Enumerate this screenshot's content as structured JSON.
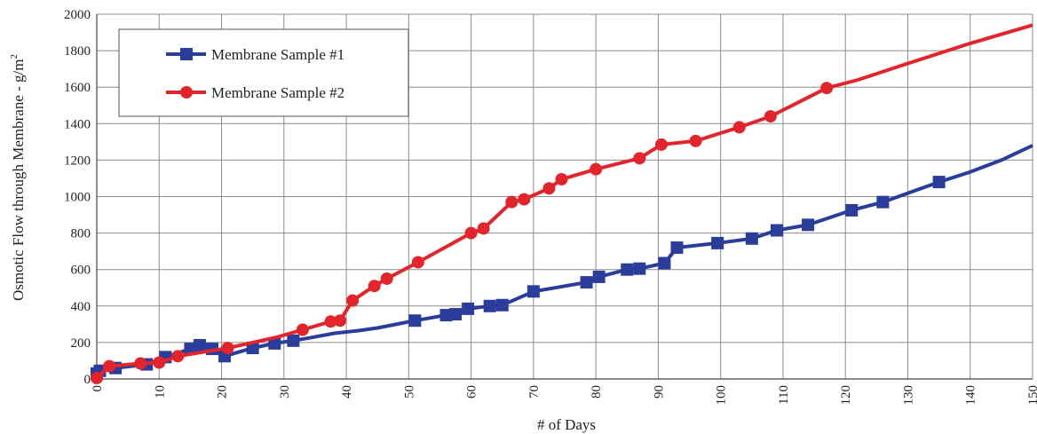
{
  "chart_data": {
    "type": "line",
    "xlabel": "# of Days",
    "ylabel": "Osmotic Flow through Membrane - g/m",
    "ylabel_sup": "2",
    "xlim": [
      0,
      150
    ],
    "ylim": [
      0,
      2000
    ],
    "xticks": [
      "0",
      "10",
      "20",
      "30",
      "40",
      "50",
      "60",
      "70",
      "80",
      "90",
      "100",
      "110",
      "120",
      "130",
      "140",
      "150"
    ],
    "yticks": [
      "0",
      "200",
      "400",
      "600",
      "800",
      "1000",
      "1200",
      "1400",
      "1600",
      "1800",
      "2000"
    ],
    "grid": true,
    "legend_position": "top-left",
    "series": [
      {
        "name": "Membrane Sample #1",
        "color": "#2b3d9a",
        "marker": "square",
        "points": [
          [
            0,
            30
          ],
          [
            0.5,
            45
          ],
          [
            3,
            60
          ],
          [
            8,
            80
          ],
          [
            11,
            120
          ],
          [
            15,
            165
          ],
          [
            16.5,
            185
          ],
          [
            18.5,
            165
          ],
          [
            20.5,
            125
          ],
          [
            25,
            170
          ],
          [
            28.5,
            195
          ],
          [
            31.5,
            210
          ],
          [
            51,
            320
          ],
          [
            56,
            350
          ],
          [
            57.5,
            355
          ],
          [
            59.5,
            385
          ],
          [
            63,
            400
          ],
          [
            65,
            405
          ],
          [
            70,
            480
          ],
          [
            78.5,
            530
          ],
          [
            80.5,
            560
          ],
          [
            85,
            600
          ],
          [
            87,
            605
          ],
          [
            91,
            635
          ],
          [
            93,
            720
          ],
          [
            99.5,
            745
          ],
          [
            105,
            770
          ],
          [
            109,
            815
          ],
          [
            114,
            845
          ],
          [
            121,
            925
          ],
          [
            126,
            970
          ],
          [
            135,
            1080
          ]
        ],
        "line_tail": [
          [
            31.5,
            210
          ],
          [
            34,
            225
          ],
          [
            38,
            250
          ],
          [
            42,
            265
          ],
          [
            45,
            280
          ],
          [
            48,
            300
          ],
          [
            51,
            320
          ]
        ],
        "line_end": [
          [
            135,
            1080
          ],
          [
            140,
            1135
          ],
          [
            145,
            1200
          ],
          [
            150,
            1280
          ]
        ]
      },
      {
        "name": "Membrane Sample #2",
        "color": "#e3252b",
        "marker": "circle",
        "points": [
          [
            0,
            5
          ],
          [
            2,
            70
          ],
          [
            7,
            85
          ],
          [
            10,
            90
          ],
          [
            13,
            125
          ],
          [
            21,
            170
          ],
          [
            33,
            270
          ],
          [
            37.5,
            315
          ],
          [
            39,
            320
          ],
          [
            41,
            430
          ],
          [
            44.5,
            510
          ],
          [
            46.5,
            550
          ],
          [
            51.5,
            640
          ],
          [
            60,
            800
          ],
          [
            62,
            825
          ],
          [
            66.5,
            970
          ],
          [
            68.5,
            985
          ],
          [
            72.5,
            1045
          ],
          [
            74.5,
            1095
          ],
          [
            80,
            1150
          ],
          [
            87,
            1210
          ],
          [
            90.5,
            1285
          ],
          [
            96,
            1305
          ],
          [
            103,
            1380
          ],
          [
            108,
            1440
          ],
          [
            117,
            1595
          ]
        ],
        "line_tail": [
          [
            21,
            170
          ],
          [
            25,
            200
          ],
          [
            29,
            230
          ],
          [
            33,
            270
          ]
        ],
        "line_end": [
          [
            117,
            1595
          ],
          [
            122,
            1640
          ],
          [
            130,
            1730
          ],
          [
            140,
            1840
          ],
          [
            150,
            1940
          ]
        ]
      }
    ]
  }
}
